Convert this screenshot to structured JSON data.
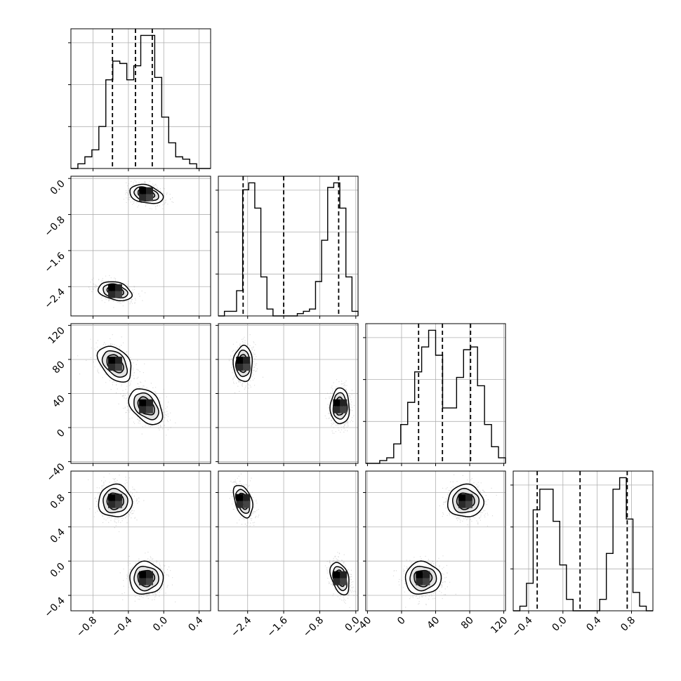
{
  "chart_data": {
    "type": "corner",
    "grid": true,
    "dims": [
      {
        "range": [
          -1.05,
          0.53
        ],
        "ticks": [
          -0.8,
          -0.4,
          0.0,
          0.4
        ],
        "tick_labels": [
          "−0.8",
          "−0.4",
          "0.0",
          "0.4"
        ],
        "quantiles": [
          -0.58,
          -0.32,
          -0.13
        ],
        "hist": [
          0,
          2,
          5,
          8,
          18,
          38,
          46,
          45,
          38,
          44,
          57,
          57,
          39,
          22,
          11,
          5,
          4,
          2,
          0,
          0
        ]
      },
      {
        "range": [
          -3.05,
          0.05
        ],
        "ticks": [
          -2.4,
          -1.6,
          -0.8,
          0.0
        ],
        "tick_labels": [
          "−2.4",
          "−1.6",
          "−0.8",
          "0.0"
        ],
        "quantiles": [
          -2.5,
          -1.6,
          -0.38
        ],
        "hist": [
          0,
          2,
          2,
          11,
          55,
          58,
          47,
          17,
          3,
          0,
          0,
          0,
          0,
          1,
          2,
          3,
          15,
          33,
          56,
          58,
          47,
          17,
          2
        ]
      },
      {
        "range": [
          -42,
          122
        ],
        "ticks": [
          -40,
          0,
          40,
          80,
          120
        ],
        "tick_labels": [
          "−40",
          "0",
          "40",
          "80",
          "120"
        ],
        "quantiles": [
          20,
          48,
          81
        ],
        "hist": [
          0,
          0,
          1,
          2,
          7,
          14,
          22,
          33,
          42,
          48,
          39,
          20,
          20,
          31,
          41,
          42,
          28,
          14,
          6,
          2
        ]
      },
      {
        "range": [
          -0.58,
          1.05
        ],
        "ticks": [
          -0.4,
          0.0,
          0.4,
          0.8
        ],
        "tick_labels": [
          "−0.4",
          "0.0",
          "0.4",
          "0.8"
        ],
        "quantiles": [
          -0.3,
          0.2,
          0.75
        ],
        "hist": [
          0,
          2,
          12,
          44,
          53,
          53,
          39,
          20,
          5,
          0,
          0,
          0,
          0,
          5,
          25,
          53,
          58,
          40,
          8,
          2,
          0
        ]
      }
    ],
    "modes": [
      {
        "weight": 0.5,
        "mean": [
          -0.55,
          -2.5,
          75,
          0.7
        ],
        "sd": [
          0.09,
          0.1,
          10,
          0.09
        ]
      },
      {
        "weight": 0.5,
        "mean": [
          -0.2,
          -0.35,
          25,
          -0.2
        ],
        "sd": [
          0.09,
          0.1,
          10,
          0.09
        ]
      }
    ],
    "pair_correlations": {
      "1-0": -0.3,
      "2-0": -0.4,
      "2-1": 0.0,
      "3-0": 0.0,
      "3-1": -0.4,
      "3-2": 0.0
    }
  }
}
